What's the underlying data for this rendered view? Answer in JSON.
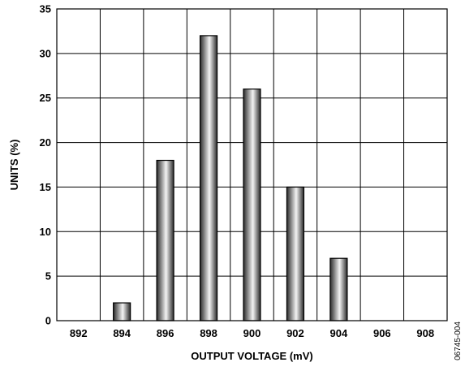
{
  "chart_data": {
    "type": "bar",
    "title": "",
    "xlabel": "OUTPUT VOLTAGE (mV)",
    "ylabel": "UNITS (%)",
    "categories": [
      "892",
      "894",
      "896",
      "898",
      "900",
      "902",
      "904",
      "906",
      "908"
    ],
    "values": [
      0,
      2,
      18,
      32,
      26,
      15,
      7,
      0,
      0
    ],
    "ylim": [
      0,
      35
    ],
    "yticks": [
      "0",
      "5",
      "10",
      "15",
      "20",
      "25",
      "30",
      "35"
    ],
    "grid": true,
    "legend": "none"
  },
  "figure_id": "06745-004",
  "colors": {
    "bar_dark": "#2a2a2a",
    "bar_light": "#f4f4f4",
    "grid": "#000000",
    "text": "#000000"
  }
}
